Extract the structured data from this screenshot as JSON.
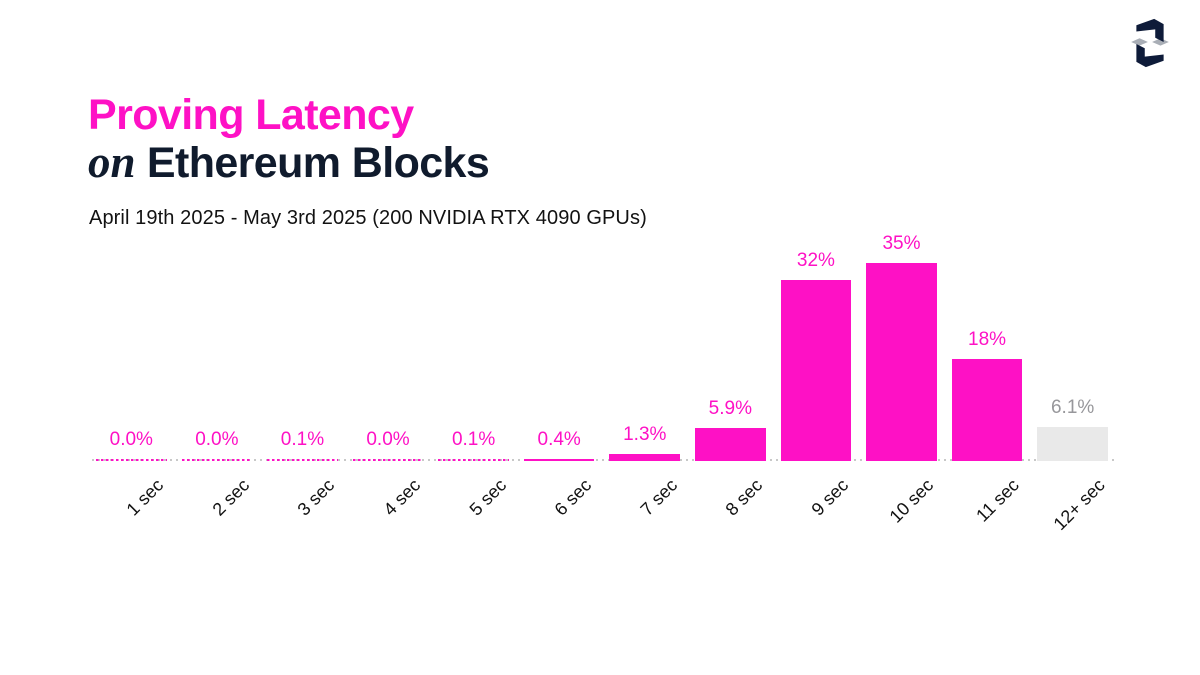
{
  "header": {
    "title_line1": "Proving Latency",
    "title_line2_italic": "on",
    "title_line2_rest": "Ethereum Blocks",
    "subtitle": "April 19th 2025 - May 3rd 2025 (200 NVIDIA RTX 4090 GPUs)"
  },
  "logo": {
    "name": "succinct-logo",
    "navy": "#0e1b39",
    "gray": "#a9aeb6"
  },
  "chart_data": {
    "type": "bar",
    "title": "Proving Latency on Ethereum Blocks",
    "subtitle": "April 19th 2025 - May 3rd 2025 (200 NVIDIA RTX 4090 GPUs)",
    "categories": [
      "1 sec",
      "2 sec",
      "3 sec",
      "4 sec",
      "5 sec",
      "6 sec",
      "7 sec",
      "8 sec",
      "9 sec",
      "10 sec",
      "11 sec",
      "12+ sec"
    ],
    "values": [
      0.0,
      0.0,
      0.1,
      0.0,
      0.1,
      0.4,
      1.3,
      5.9,
      32,
      35,
      18,
      6.1
    ],
    "value_labels": [
      "0.0%",
      "0.0%",
      "0.1%",
      "0.0%",
      "0.1%",
      "0.4%",
      "1.3%",
      "5.9%",
      "32%",
      "35%",
      "18%",
      "6.1%"
    ],
    "xlabel": "",
    "ylabel": "",
    "ylim": [
      0,
      40
    ],
    "grid": false,
    "legend": null,
    "bar_color": "#fe11c5",
    "last_bar_color": "#e9e9e9",
    "last_label_color": "#97979b",
    "axis_dot_color": "#c8c8c8",
    "tick_label_rotation_deg": -45
  }
}
